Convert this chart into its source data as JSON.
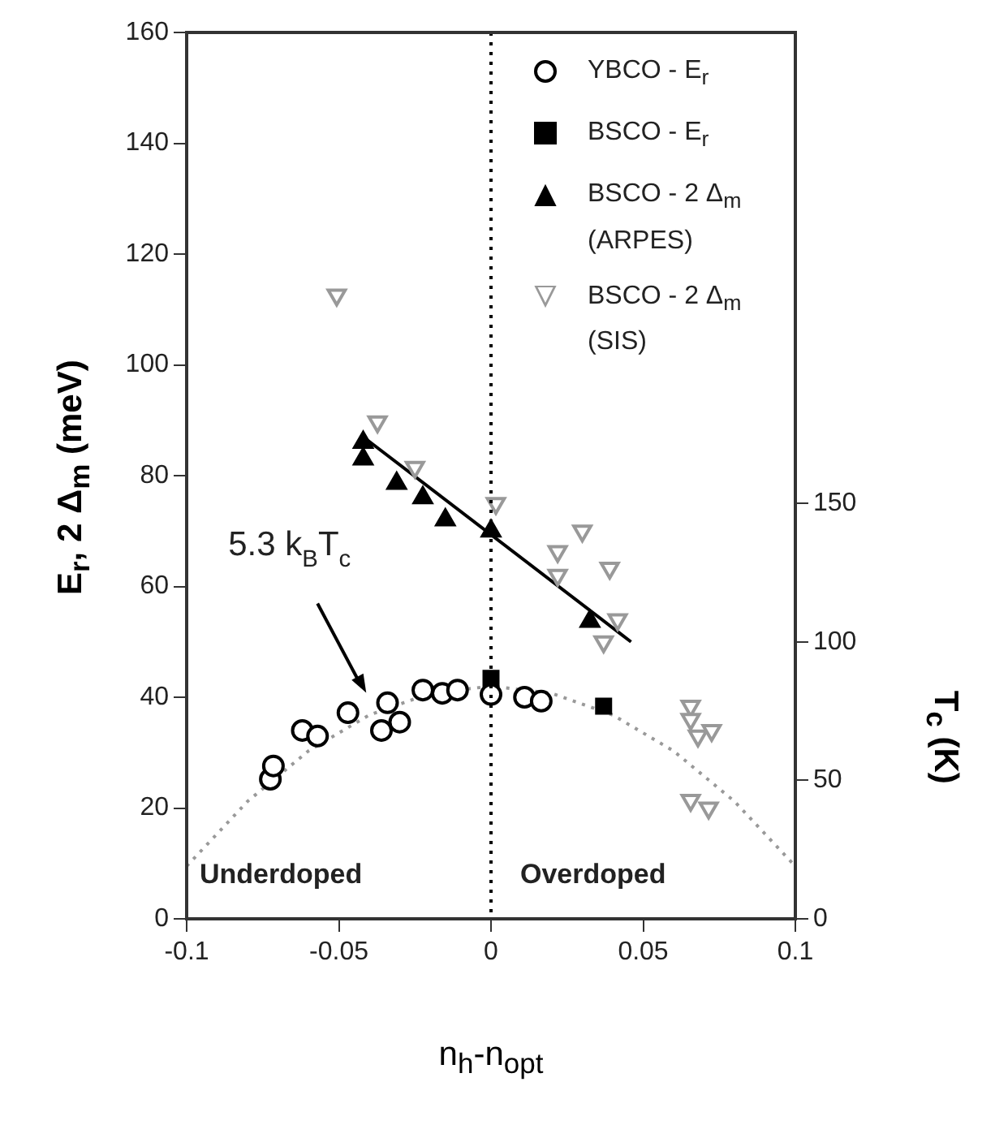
{
  "chart_data": {
    "type": "scatter",
    "xlabel": "n$_{h}$-n$_{opt}$",
    "ylabel": "E$_{r}$, 2 Δ$_{m}$ (meV)",
    "y2label": "T$_{c}$ (K)",
    "xlim": [
      -0.1,
      0.1
    ],
    "xticks": [
      -0.1,
      -0.05,
      0,
      0.05,
      0.1
    ],
    "ylim": [
      0,
      160
    ],
    "yticks": [
      0,
      20,
      40,
      60,
      80,
      100,
      120,
      140,
      160
    ],
    "y2lim": [
      0,
      320
    ],
    "y2ticks": [
      0,
      50,
      100,
      150
    ],
    "grid": false,
    "legend": "top right",
    "ref_lines": [
      {
        "axis": "x",
        "value": 0,
        "color": "#000000",
        "line_style": "dotted"
      }
    ],
    "annotations": [
      "5.3 k$_{B}$T$_{c}$",
      "Underdoped",
      "Overdoped"
    ],
    "series": [
      {
        "type": "line",
        "color": "#999999",
        "line_style": "dotted",
        "marker": "none",
        "x": [
          -0.1,
          -0.08,
          -0.06,
          -0.04,
          -0.02,
          0,
          0.02,
          0.04,
          0.06,
          0.08,
          0.1
        ],
        "values": [
          9.5,
          21.2,
          30.3,
          36.8,
          40.7,
          42,
          40.7,
          36.8,
          30.3,
          21.2,
          9.5
        ]
      },
      {
        "type": "line",
        "color": "#000000",
        "line_style": "solid",
        "marker": "none",
        "x": [
          -0.042,
          0.046
        ],
        "values": [
          87,
          50
        ]
      },
      {
        "name": "YBCO - E$_{r}$",
        "type": "scatter",
        "color": "#000000",
        "marker": "circle",
        "x": [
          -0.0725,
          -0.0715,
          -0.062,
          -0.057,
          -0.047,
          -0.036,
          -0.034,
          -0.03,
          -0.0224,
          -0.016,
          -0.011,
          0,
          0.011,
          0.0165
        ],
        "values": [
          25.2,
          27.6,
          34,
          33,
          37.2,
          34,
          39,
          35.5,
          41.3,
          40.7,
          41.3,
          40.5,
          40,
          39.3
        ]
      },
      {
        "name": "BSCO - E$_{r}$",
        "type": "scatter",
        "color": "#000000",
        "marker": "square",
        "x": [
          0,
          0.037
        ],
        "values": [
          43.4,
          38.4
        ]
      },
      {
        "name": "BSCO - 2 Δ$_{m}$ (ARPES)",
        "type": "scatter",
        "color": "#000000",
        "marker": "triangle",
        "x": [
          -0.042,
          -0.042,
          -0.031,
          -0.0224,
          -0.015,
          0,
          0.0325
        ],
        "values": [
          86,
          83,
          78.6,
          76,
          72,
          70,
          53.7
        ]
      },
      {
        "name": "BSCO - 2 Δ$_{m}$ (SIS)",
        "type": "scatter",
        "color": "#999999",
        "marker": "triangle_down",
        "x": [
          -0.0507,
          -0.0373,
          -0.025,
          0.0016,
          0.03,
          0.0219,
          0.0219,
          0.039,
          0.0416,
          0.037,
          0.0656,
          0.0656,
          0.068,
          0.0725,
          0.0656,
          0.0715
        ],
        "values": [
          112.6,
          89.7,
          81.5,
          75,
          70,
          66.3,
          62,
          63.3,
          54,
          50,
          38.4,
          36,
          33,
          34,
          21.4,
          20
        ]
      }
    ]
  }
}
